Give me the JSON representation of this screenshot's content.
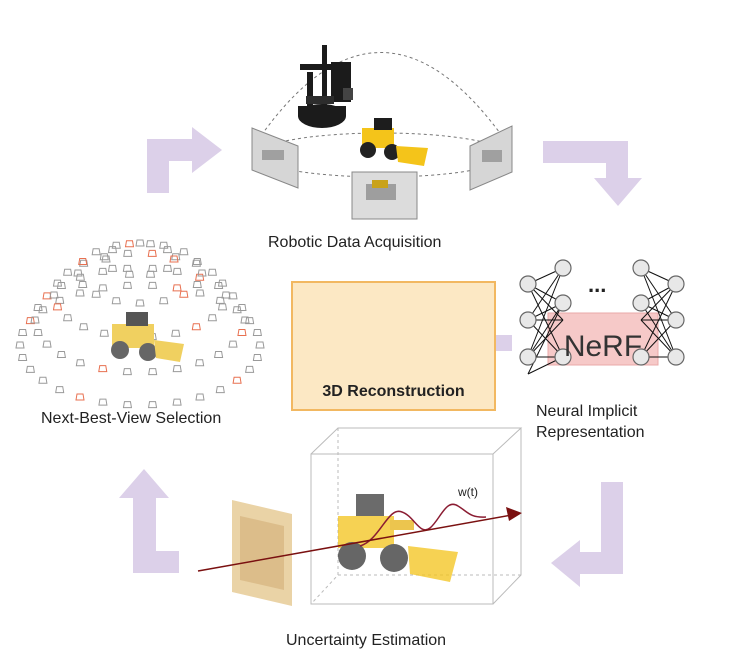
{
  "stages": {
    "robotic_data_acquisition": "Robotic Data Acquisition",
    "neural_implicit_representation_line1": "Neural Implicit",
    "neural_implicit_representation_line2": "Representation",
    "uncertainty_estimation": "Uncertainty Estimation",
    "next_best_view_selection": "Next-Best-View Selection",
    "reconstruction": "3D Reconstruction"
  },
  "nerf": {
    "label": "NeRF",
    "ellipsis": "..."
  },
  "uncertainty": {
    "curve_label": "w(t)"
  },
  "colors": {
    "arrow": "#dcd0e9",
    "recon_fill": "#fce8c4",
    "recon_border": "#f2b861",
    "nerf_fill": "#f6c9c8",
    "ray": "#7a1010",
    "camera_red": "#e87050",
    "camera_gray": "#9a9a9a"
  }
}
